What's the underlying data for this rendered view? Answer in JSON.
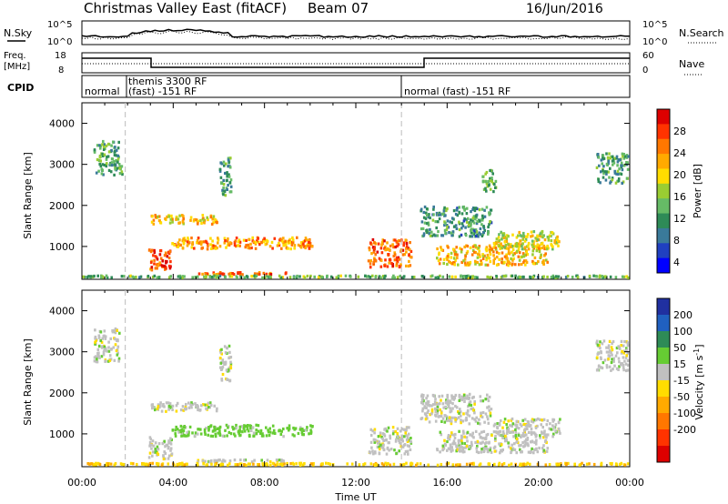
{
  "header": {
    "title": "Christmas Valley East (fitACF)",
    "beam": "Beam 07",
    "date": "16/Jun/2016"
  },
  "noise_panel": {
    "left_label": "N.Sky",
    "left_ticks": [
      "10^5",
      "10^0"
    ],
    "right_ticks": [
      "10^5",
      "10^0"
    ],
    "right_label": "N.Search"
  },
  "freq_panel": {
    "left_label_1": "Freq.",
    "left_label_2": "[MHz]",
    "left_ticks": [
      "18",
      "8"
    ],
    "right_ticks": [
      "60",
      "0"
    ],
    "right_label": "Nave"
  },
  "cpid_panel": {
    "label": "CPID",
    "modes": [
      {
        "text": "normal",
        "start_hour": 0.0
      },
      {
        "text": "themis 3300 RF",
        "start_hour": 1.9
      },
      {
        "text": "(fast) -151 RF",
        "start_hour": 1.9
      },
      {
        "text": "normal (fast) -151 RF",
        "start_hour": 14.0
      }
    ]
  },
  "x_axis": {
    "label": "Time UT",
    "ticks": [
      "00:00",
      "04:00",
      "08:00",
      "12:00",
      "16:00",
      "20:00",
      "00:00"
    ]
  },
  "power_colorbar": {
    "label": "Power [dB]",
    "ticks": [
      "28",
      "24",
      "20",
      "16",
      "12",
      "8",
      "4"
    ],
    "colors": [
      "#dd0000",
      "#ff3300",
      "#ff7700",
      "#ffaa00",
      "#ffdd00",
      "#9acd32",
      "#66bb66",
      "#2e8b57",
      "#3a7a9a",
      "#2040c0",
      "#0000ff"
    ]
  },
  "velocity_colorbar": {
    "label_1": "Velocity",
    "label_2": "[m s",
    "label_3": "-1",
    "label_4": "]",
    "ticks": [
      "200",
      "100",
      "50",
      "15",
      "-15",
      "-50",
      "-100",
      "-200"
    ],
    "colors": [
      "#2030a0",
      "#2060c0",
      "#2e8b57",
      "#66cc33",
      "#c0c0c0",
      "#ffdd00",
      "#ffaa00",
      "#ff7700",
      "#ff3300",
      "#dd0000"
    ]
  },
  "chart_data": [
    {
      "type": "heatmap",
      "title": "Power",
      "ylabel": "Slant Range [km]",
      "xlabel": "Time UT",
      "xlim": [
        0,
        24
      ],
      "ylim": [
        200,
        4500
      ],
      "y_ticks": [
        1000,
        2000,
        3000,
        4000
      ],
      "y_tick_labels": [
        "1000",
        "2000",
        "3000",
        "4000"
      ],
      "colorbar_ticks": [
        4,
        8,
        12,
        16,
        20,
        24,
        28
      ],
      "dashed_times_hours": [
        1.9,
        14.0
      ],
      "regions": [
        {
          "t0": 0.5,
          "t1": 1.7,
          "r0": 2700,
          "r1": 3600,
          "level": 10
        },
        {
          "t0": 1.6,
          "t1": 1.9,
          "r0": 2700,
          "r1": 3000,
          "level": 13
        },
        {
          "t0": 3.0,
          "t1": 6.0,
          "r0": 1500,
          "r1": 1800,
          "level": 20
        },
        {
          "t0": 6.0,
          "t1": 6.6,
          "r0": 2200,
          "r1": 3200,
          "level": 9
        },
        {
          "t0": 2.9,
          "t1": 4.0,
          "r0": 350,
          "r1": 950,
          "level": 27
        },
        {
          "t0": 3.9,
          "t1": 10.2,
          "r0": 900,
          "r1": 1250,
          "level": 22
        },
        {
          "t0": 5.0,
          "t1": 9.0,
          "r0": 280,
          "r1": 400,
          "level": 25
        },
        {
          "t0": 9.8,
          "t1": 10.2,
          "r0": 900,
          "r1": 1200,
          "level": 24
        },
        {
          "t0": 12.5,
          "t1": 14.5,
          "r0": 450,
          "r1": 1200,
          "level": 25
        },
        {
          "t0": 14.8,
          "t1": 18.0,
          "r0": 1200,
          "r1": 2000,
          "level": 9
        },
        {
          "t0": 15.5,
          "t1": 20.5,
          "r0": 500,
          "r1": 1100,
          "level": 20
        },
        {
          "t0": 18.0,
          "t1": 21.0,
          "r0": 900,
          "r1": 1400,
          "level": 16
        },
        {
          "t0": 17.5,
          "t1": 18.2,
          "r0": 2300,
          "r1": 2900,
          "level": 12
        },
        {
          "t0": 22.5,
          "t1": 24.0,
          "r0": 2500,
          "r1": 3300,
          "level": 10
        },
        {
          "t0": 0.0,
          "t1": 24.0,
          "r0": 200,
          "r1": 320,
          "level": 12
        }
      ]
    },
    {
      "type": "heatmap",
      "title": "Velocity",
      "ylabel": "Slant Range [km]",
      "xlabel": "Time UT",
      "xlim": [
        0,
        24
      ],
      "ylim": [
        200,
        4500
      ],
      "y_ticks": [
        1000,
        2000,
        3000,
        4000
      ],
      "y_tick_labels": [
        "1000",
        "2000",
        "3000",
        "4000"
      ],
      "colorbar_ticks": [
        -200,
        -100,
        -50,
        -15,
        15,
        50,
        100,
        200
      ],
      "dashed_times_hours": [
        1.9,
        14.0
      ],
      "regions": [
        {
          "t0": 0.5,
          "t1": 1.7,
          "r0": 2700,
          "r1": 3600,
          "level": 0
        },
        {
          "t0": 3.0,
          "t1": 6.0,
          "r0": 1500,
          "r1": 1800,
          "level": 0
        },
        {
          "t0": 6.0,
          "t1": 6.6,
          "r0": 2200,
          "r1": 3200,
          "level": 0
        },
        {
          "t0": 2.9,
          "t1": 4.0,
          "r0": 350,
          "r1": 950,
          "level": 0
        },
        {
          "t0": 3.9,
          "t1": 10.2,
          "r0": 900,
          "r1": 1250,
          "level": 30
        },
        {
          "t0": 5.0,
          "t1": 9.0,
          "r0": 280,
          "r1": 400,
          "level": 0
        },
        {
          "t0": 12.5,
          "t1": 14.5,
          "r0": 450,
          "r1": 1200,
          "level": 0
        },
        {
          "t0": 14.8,
          "t1": 18.0,
          "r0": 1200,
          "r1": 2000,
          "level": 0
        },
        {
          "t0": 15.5,
          "t1": 20.5,
          "r0": 500,
          "r1": 1100,
          "level": 0
        },
        {
          "t0": 18.0,
          "t1": 21.0,
          "r0": 900,
          "r1": 1400,
          "level": 0
        },
        {
          "t0": 22.5,
          "t1": 24.0,
          "r0": 2500,
          "r1": 3300,
          "level": 0
        },
        {
          "t0": 0.0,
          "t1": 24.0,
          "r0": 200,
          "r1": 320,
          "level": -40
        }
      ]
    }
  ]
}
